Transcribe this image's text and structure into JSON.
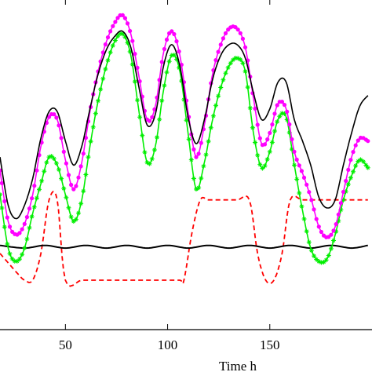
{
  "chart_data": {
    "type": "line",
    "xlabel": "Time h",
    "ylabel": "",
    "xlim": [
      18,
      200
    ],
    "ylim": [
      0,
      100
    ],
    "x_ticks": [
      50,
      100,
      150
    ],
    "grid": false,
    "series": [
      {
        "color": "#ff00ff",
        "style": "solid-dot-markers",
        "x": [
          18,
          22,
          26,
          30,
          34,
          38,
          42,
          46,
          50,
          54,
          58,
          62,
          66,
          70,
          74,
          78,
          82,
          86,
          90,
          94,
          98,
          102,
          106,
          110,
          114,
          118,
          122,
          126,
          130,
          134,
          138,
          142,
          146,
          150,
          154,
          158,
          162,
          166,
          170,
          174,
          178,
          182,
          186,
          190,
          194,
          198
        ],
        "y": [
          41,
          22,
          17,
          21,
          32,
          50,
          61,
          60,
          45,
          34,
          44,
          63,
          78,
          89,
          96,
          99,
          92,
          76,
          60,
          65,
          85,
          93,
          84,
          63,
          46,
          58,
          77,
          88,
          94,
          94,
          87,
          68,
          51,
          55,
          66,
          64,
          48,
          40,
          31,
          20,
          16,
          20,
          33,
          46,
          53,
          52
        ]
      },
      {
        "color": "#000000",
        "style": "solid",
        "x": [
          18,
          22,
          26,
          30,
          34,
          38,
          42,
          46,
          50,
          54,
          58,
          62,
          66,
          70,
          74,
          78,
          82,
          86,
          90,
          94,
          98,
          102,
          106,
          110,
          114,
          118,
          122,
          126,
          130,
          134,
          138,
          142,
          146,
          150,
          154,
          158,
          162,
          166,
          170,
          174,
          178,
          182,
          186,
          190,
          194,
          198
        ],
        "y": [
          46,
          28,
          23,
          28,
          38,
          53,
          63,
          63,
          52,
          43,
          50,
          64,
          77,
          86,
          91,
          93,
          87,
          72,
          58,
          62,
          80,
          88,
          80,
          61,
          51,
          60,
          75,
          84,
          88,
          88,
          83,
          70,
          60,
          64,
          74,
          74,
          60,
          52,
          43,
          31,
          27,
          30,
          43,
          55,
          65,
          69
        ]
      },
      {
        "color": "#00ee00",
        "style": "solid-star-markers",
        "x": [
          18,
          22,
          26,
          30,
          34,
          38,
          42,
          46,
          50,
          54,
          58,
          62,
          66,
          70,
          74,
          78,
          82,
          86,
          90,
          94,
          98,
          102,
          106,
          110,
          114,
          118,
          122,
          126,
          130,
          134,
          138,
          142,
          146,
          150,
          154,
          158,
          162,
          166,
          170,
          174,
          178,
          182,
          186,
          190,
          194,
          198
        ],
        "y": [
          32,
          12,
          7,
          12,
          25,
          36,
          46,
          43,
          32,
          22,
          30,
          50,
          67,
          80,
          89,
          92,
          84,
          63,
          44,
          50,
          71,
          84,
          78,
          55,
          34,
          44,
          60,
          72,
          80,
          83,
          78,
          55,
          42,
          48,
          60,
          61,
          43,
          26,
          12,
          7,
          8,
          17,
          30,
          39,
          45,
          42
        ]
      },
      {
        "color": "#ff0000",
        "style": "dashed",
        "x": [
          18,
          26,
          30,
          34,
          38,
          42,
          46,
          50,
          58,
          66,
          74,
          82,
          90,
          98,
          106,
          108,
          112,
          116,
          120,
          126,
          134,
          140,
          144,
          148,
          152,
          156,
          160,
          166,
          174,
          180,
          186,
          190,
          194,
          198
        ],
        "y": [
          10,
          3,
          0,
          0,
          10,
          30,
          30,
          0,
          0,
          0,
          0,
          0,
          0,
          0,
          0,
          0,
          18,
          30,
          30,
          30,
          30,
          30,
          10,
          0,
          0,
          10,
          30,
          30,
          30,
          30,
          30,
          30,
          30,
          30
        ]
      },
      {
        "color": "#000000",
        "style": "solid-baseline",
        "x": [
          18,
          30,
          40,
          50,
          60,
          70,
          80,
          90,
          100,
          110,
          120,
          130,
          140,
          150,
          160,
          170,
          180,
          190,
          198
        ],
        "y": [
          13,
          12,
          13,
          12,
          13,
          12,
          13,
          12,
          13,
          12,
          13,
          12,
          13,
          12,
          13,
          12,
          13,
          12,
          13
        ]
      }
    ]
  }
}
